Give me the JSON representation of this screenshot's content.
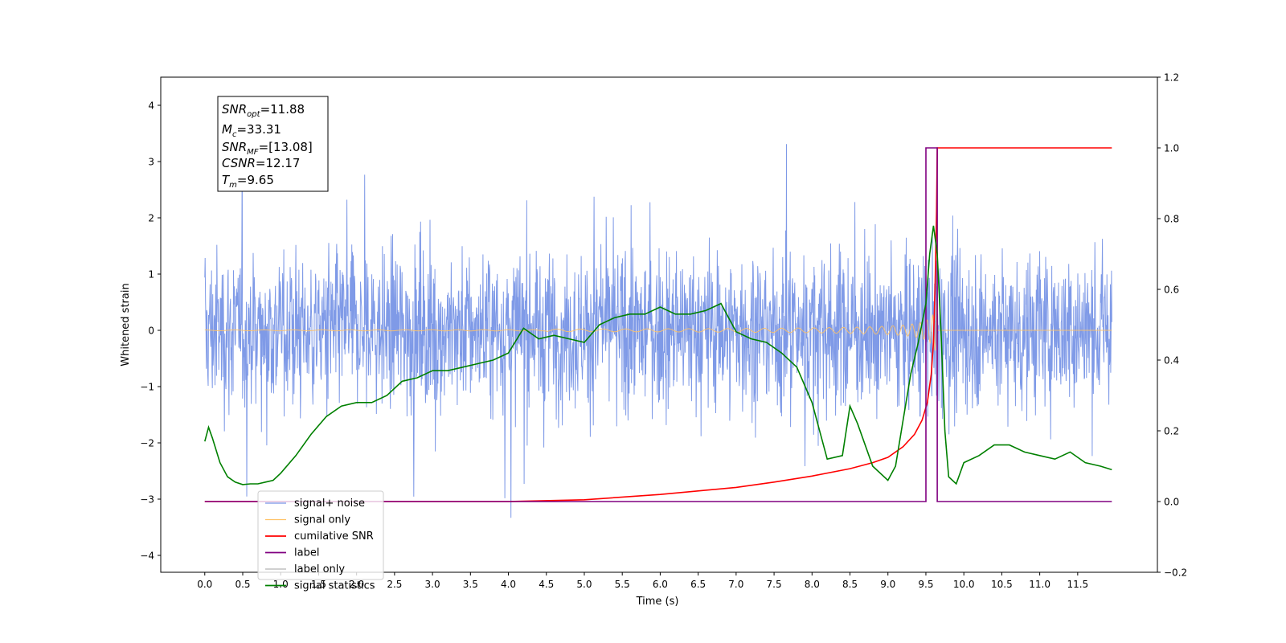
{
  "chart_data": {
    "type": "line",
    "xlabel": "Time (s)",
    "ylabel": "Whitened strain",
    "xlim": [
      -0.58,
      12.55
    ],
    "ylim": [
      -4.3,
      4.5
    ],
    "y2lim": [
      -0.2,
      1.2
    ],
    "x_ticks": [
      "0.0",
      "0.5",
      "1.0",
      "1.5",
      "2.0",
      "2.5",
      "3.0",
      "3.5",
      "4.0",
      "4.5",
      "5.0",
      "5.5",
      "6.0",
      "6.5",
      "7.0",
      "7.5",
      "8.0",
      "8.5",
      "9.0",
      "9.5",
      "10.0",
      "10.5",
      "11.0",
      "11.5"
    ],
    "y_ticks": [
      "4",
      "3",
      "2",
      "1",
      "0",
      "−1",
      "−2",
      "−3",
      "−4"
    ],
    "y2_ticks": [
      "1.2",
      "1.0",
      "0.8",
      "0.6",
      "0.4",
      "0.2",
      "0.0",
      "−0.2"
    ],
    "grid": false,
    "annotation_lines": [
      "SNR_opt=11.88",
      "M_c=33.31",
      "SNR_MF=[13.08]",
      "CSNR=12.17",
      "T_m=9.65"
    ],
    "legend_placement": "lower-left",
    "series": [
      {
        "name": "signal+ noise",
        "color": "#7895e6",
        "axis": "left",
        "description": "whitened noise with injected chirp, roughly +/-1.5 with spikes to +/-3.5, from t=0 to 12"
      },
      {
        "name": "signal only",
        "color": "#ffc266",
        "axis": "left",
        "description": "chirp waveform: flat near 0, amplitude grows to ~1.0 near t=9.6 then drops to 0"
      },
      {
        "name": "cumilative SNR",
        "color": "#ff0000",
        "axis": "right",
        "x": [
          0.0,
          4.0,
          5.0,
          6.0,
          7.0,
          7.5,
          8.0,
          8.5,
          8.8,
          9.0,
          9.2,
          9.35,
          9.45,
          9.52,
          9.57,
          9.6,
          9.62,
          9.64,
          9.65,
          11.95
        ],
        "values": [
          0.0,
          0.0,
          0.005,
          0.02,
          0.04,
          0.055,
          0.072,
          0.093,
          0.11,
          0.125,
          0.155,
          0.19,
          0.23,
          0.28,
          0.36,
          0.45,
          0.6,
          0.82,
          1.0,
          1.0
        ]
      },
      {
        "name": "label",
        "color": "#800080",
        "axis": "right",
        "x": [
          0.0,
          9.5,
          9.5,
          9.65,
          9.65,
          11.95
        ],
        "values": [
          0.0,
          0.0,
          1.0,
          1.0,
          0.0,
          0.0
        ]
      },
      {
        "name": "label only",
        "color": "#c9c9c9",
        "axis": "right",
        "description": "legend entry only"
      },
      {
        "name": "signal statistics",
        "color": "#008000",
        "axis": "right",
        "x": [
          0.0,
          0.05,
          0.1,
          0.2,
          0.3,
          0.4,
          0.5,
          0.6,
          0.7,
          0.8,
          0.9,
          1.0,
          1.2,
          1.4,
          1.6,
          1.8,
          2.0,
          2.2,
          2.4,
          2.6,
          2.8,
          3.0,
          3.2,
          3.4,
          3.6,
          3.8,
          4.0,
          4.2,
          4.4,
          4.6,
          4.8,
          5.0,
          5.2,
          5.4,
          5.6,
          5.8,
          6.0,
          6.2,
          6.4,
          6.6,
          6.8,
          7.0,
          7.2,
          7.4,
          7.6,
          7.8,
          8.0,
          8.2,
          8.4,
          8.5,
          8.6,
          8.8,
          9.0,
          9.1,
          9.2,
          9.3,
          9.4,
          9.5,
          9.55,
          9.6,
          9.65,
          9.7,
          9.75,
          9.8,
          9.9,
          10.0,
          10.2,
          10.4,
          10.6,
          10.8,
          11.0,
          11.2,
          11.4,
          11.6,
          11.8,
          11.95
        ],
        "values": [
          0.17,
          0.21,
          0.18,
          0.11,
          0.07,
          0.055,
          0.048,
          0.05,
          0.05,
          0.055,
          0.06,
          0.08,
          0.13,
          0.19,
          0.24,
          0.27,
          0.28,
          0.28,
          0.3,
          0.34,
          0.35,
          0.37,
          0.37,
          0.38,
          0.39,
          0.4,
          0.42,
          0.49,
          0.46,
          0.47,
          0.46,
          0.45,
          0.5,
          0.52,
          0.53,
          0.53,
          0.55,
          0.53,
          0.53,
          0.54,
          0.56,
          0.48,
          0.46,
          0.45,
          0.42,
          0.38,
          0.28,
          0.12,
          0.13,
          0.27,
          0.22,
          0.1,
          0.06,
          0.1,
          0.23,
          0.36,
          0.45,
          0.56,
          0.7,
          0.78,
          0.7,
          0.48,
          0.2,
          0.07,
          0.05,
          0.11,
          0.13,
          0.16,
          0.16,
          0.14,
          0.13,
          0.12,
          0.14,
          0.11,
          0.1,
          0.09
        ]
      }
    ]
  }
}
